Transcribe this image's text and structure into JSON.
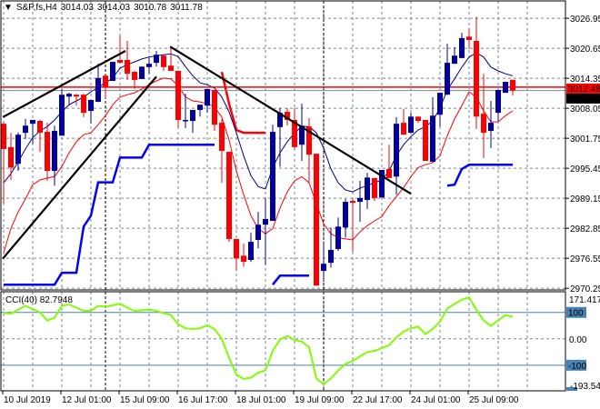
{
  "header": {
    "menu_icon": "triangle-down-icon",
    "symbol": "S&P,fs,H4",
    "open": "3014.03",
    "high": "3014.03",
    "low": "3010.78",
    "close": "3011.78"
  },
  "chart_data": [
    {
      "type": "candlestick",
      "ylim": [
        2969.9,
        3030.6
      ],
      "grid": true,
      "price_ticks": [
        "3026.95",
        "3020.65",
        "3014.35",
        "3008.05",
        "3001.75",
        "2995.45",
        "2989.15",
        "2982.85",
        "2976.55",
        "2970.25"
      ],
      "x_tick_labels": [
        {
          "bar": 0,
          "label": "10 Jul 2019"
        },
        {
          "bar": 8,
          "label": "12 Jul 01:00"
        },
        {
          "bar": 16,
          "label": "15 Jul 09:00"
        },
        {
          "bar": 24,
          "label": "16 Jul 17:00"
        },
        {
          "bar": 32,
          "label": "18 Jul 01:00"
        },
        {
          "bar": 40,
          "label": "19 Jul 09:00"
        },
        {
          "bar": 48,
          "label": "22 Jul 17:00"
        },
        {
          "bar": 56,
          "label": "24 Jul 01:00"
        },
        {
          "bar": 64,
          "label": "25 Jul 09:00"
        }
      ],
      "period_separators_bars": [
        14,
        44
      ],
      "ohlc": [
        [
          3004.8,
          3005.2,
          2988.0,
          2999.5
        ],
        [
          2999.9,
          3002.9,
          2993.0,
          2995.6
        ],
        [
          2996.4,
          3003.0,
          2994.9,
          3002.5
        ],
        [
          3002.9,
          3005.8,
          3001.6,
          3004.4
        ],
        [
          3004.8,
          3005.6,
          3000.6,
          3005.6
        ],
        [
          3005.4,
          3005.6,
          2998.9,
          3002.9
        ],
        [
          3003.1,
          3005.0,
          2992.8,
          2994.9
        ],
        [
          2994.9,
          3004.4,
          2991.8,
          3003.3
        ],
        [
          3002.3,
          3012.1,
          3002.3,
          3010.9
        ],
        [
          3010.5,
          3011.3,
          3008.6,
          3011.1
        ],
        [
          3010.9,
          3011.1,
          3008.6,
          3010.5
        ],
        [
          3010.9,
          3011.1,
          3006.2,
          3007.1
        ],
        [
          3007.5,
          3009.8,
          3004.8,
          3009.8
        ],
        [
          3009.4,
          3017.4,
          3009.4,
          3014.4
        ],
        [
          3014.9,
          3014.9,
          3010.2,
          3012.5
        ],
        [
          3013.8,
          3017.8,
          3013.8,
          3017.8
        ],
        [
          3018.2,
          3023.3,
          3017.6,
          3017.6
        ],
        [
          3018.2,
          3022.2,
          3014.0,
          3015.3
        ],
        [
          3015.7,
          3015.9,
          3012.1,
          3014.0
        ],
        [
          3014.2,
          3016.8,
          3014.2,
          3016.8
        ],
        [
          3016.7,
          3018.6,
          3015.3,
          3017.4
        ],
        [
          3017.6,
          3020.1,
          3016.8,
          3019.3
        ],
        [
          3019.1,
          3019.3,
          3015.9,
          3016.7
        ],
        [
          3017.0,
          3020.9,
          3015.9,
          3015.9
        ],
        [
          3015.9,
          3016.0,
          3003.9,
          3005.6
        ],
        [
          3005.4,
          3011.1,
          3003.9,
          3005.6
        ],
        [
          3005.4,
          3007.7,
          3002.9,
          3007.7
        ],
        [
          3007.7,
          3008.8,
          3006.3,
          3008.8
        ],
        [
          3008.6,
          3012.1,
          3007.1,
          3012.1
        ],
        [
          3011.9,
          3011.9,
          3003.3,
          3004.6
        ],
        [
          3005.0,
          3005.8,
          2992.4,
          2999.1
        ],
        [
          2998.9,
          2998.9,
          2980.0,
          2980.6
        ],
        [
          2980.6,
          2980.6,
          2973.9,
          2976.5
        ],
        [
          2977.1,
          2979.6,
          2974.8,
          2975.8
        ],
        [
          2976.2,
          2981.9,
          2975.8,
          2980.0
        ],
        [
          2980.4,
          2986.3,
          2978.6,
          2983.6
        ],
        [
          2983.6,
          2989.2,
          2975.2,
          2984.8
        ],
        [
          2984.4,
          3004.6,
          2984.4,
          3003.1
        ],
        [
          3004.1,
          3008.1,
          2995.8,
          3007.1
        ],
        [
          3007.3,
          3008.1,
          3004.4,
          3005.6
        ],
        [
          3005.6,
          3008.1,
          2999.5,
          2999.9
        ],
        [
          3000.4,
          3009.0,
          2997.0,
          3004.4
        ],
        [
          3004.2,
          3006.0,
          2992.4,
          2998.3
        ],
        [
          2998.5,
          2998.5,
          2970.8,
          2970.8
        ],
        [
          2973.9,
          2979.8,
          2971.6,
          2975.4
        ],
        [
          2975.6,
          2983.0,
          2974.6,
          2978.3
        ],
        [
          2978.5,
          2985.1,
          2978.1,
          2983.2
        ],
        [
          2983.0,
          2989.0,
          2980.9,
          2988.4
        ],
        [
          2988.6,
          2989.0,
          2977.9,
          2988.2
        ],
        [
          2988.4,
          2992.8,
          2984.2,
          2989.2
        ],
        [
          2988.8,
          2994.5,
          2986.9,
          2993.5
        ],
        [
          2993.4,
          2993.4,
          2988.6,
          2989.2
        ],
        [
          2989.3,
          2995.1,
          2989.3,
          2995.1
        ],
        [
          2995.3,
          3000.4,
          2993.4,
          2993.4
        ],
        [
          2993.7,
          3006.2,
          2989.9,
          3004.8
        ],
        [
          3005.0,
          3007.9,
          3002.5,
          3002.5
        ],
        [
          3002.9,
          3007.1,
          3002.9,
          3006.3
        ],
        [
          3006.3,
          3006.3,
          3005.0,
          3005.4
        ],
        [
          3005.6,
          3005.6,
          2997.0,
          2997.0
        ],
        [
          2996.8,
          3010.4,
          2996.8,
          3006.5
        ],
        [
          3006.7,
          3011.3,
          3004.2,
          3011.3
        ],
        [
          3010.9,
          3021.6,
          3010.9,
          3017.6
        ],
        [
          3017.4,
          3020.9,
          3017.4,
          3019.1
        ],
        [
          3018.6,
          3023.9,
          3018.6,
          3022.8
        ],
        [
          3023.1,
          3024.9,
          3020.5,
          3022.4
        ],
        [
          3022.2,
          3027.2,
          3003.7,
          3006.3
        ],
        [
          3006.9,
          3015.3,
          2997.6,
          3002.9
        ],
        [
          3003.3,
          3009.6,
          2999.7,
          3005.0
        ],
        [
          3007.1,
          3011.9,
          3005.4,
          3011.9
        ],
        [
          3011.3,
          3013.6,
          3011.3,
          3013.6
        ],
        [
          3014.03,
          3014.03,
          3010.78,
          3011.78
        ]
      ],
      "fast_ma": [
        2992.4,
        2994.3,
        2996.8,
        2999.5,
        3001.9,
        3003.3,
        3004.2,
        3005.6,
        3007.3,
        3008.8,
        3009.6,
        3010.4,
        3011.5,
        3012.5,
        3013.4,
        3014.4,
        3016.5,
        3017.2,
        3017.8,
        3018.4,
        3018.8,
        3019.1,
        3019.3,
        3019.5,
        3018.9,
        3016.8,
        3014.9,
        3013.4,
        3013.0,
        3012.3,
        3010.4,
        3007.3,
        3002.9,
        2998.1,
        2993.9,
        2991.6,
        2991.1,
        2995.6,
        2998.7,
        3001.0,
        3002.9,
        3004.2,
        3004.2,
        3002.9,
        2999.7,
        2995.3,
        2992.4,
        2990.9,
        2990.5,
        2991.3,
        2991.8,
        2992.4,
        2993.0,
        2994.9,
        2998.1,
        3000.4,
        3002.1,
        3003.5,
        3004.2,
        3005.4,
        3008.1,
        3011.9,
        3014.2,
        3016.7,
        3018.8,
        3019.7,
        3018.8,
        3016.7,
        3015.9,
        3015.3,
        3014.9
      ],
      "slow_ma": [
        2977.7,
        2982.8,
        2986.3,
        2989.0,
        2992.0,
        2993.0,
        2993.4,
        2993.7,
        2995.8,
        2998.7,
        3001.0,
        3002.5,
        3002.9,
        3004.6,
        3006.5,
        3008.8,
        3010.4,
        3010.9,
        3011.3,
        3012.1,
        3013.0,
        3013.8,
        3014.4,
        3014.2,
        3012.8,
        3010.4,
        3009.6,
        3009.4,
        3009.0,
        3008.3,
        3006.2,
        3001.4,
        2994.9,
        2989.9,
        2985.5,
        2982.8,
        2981.7,
        2982.8,
        2987.1,
        2990.5,
        2992.8,
        2993.7,
        2992.4,
        2988.0,
        2983.8,
        2981.7,
        2980.9,
        2980.6,
        2980.4,
        2982.1,
        2983.4,
        2984.4,
        2985.3,
        2987.6,
        2989.5,
        2991.4,
        2993.7,
        2995.6,
        2996.2,
        2996.6,
        2998.1,
        3002.3,
        3005.8,
        3008.6,
        3011.5,
        3010.4,
        3007.5,
        3005.2,
        3005.2,
        3006.5,
        3007.5
      ],
      "support_step": [
        2971.0,
        2971.0,
        2971.0,
        2971.0,
        2971.0,
        2971.0,
        2971.0,
        2971.0,
        2973.5,
        2973.5,
        2973.5,
        2983.2,
        2985.5,
        2992.5,
        2992.5,
        2992.5,
        2997.7,
        2997.7,
        2997.7,
        2997.7,
        3000.4,
        3000.4,
        3000.4,
        3000.4,
        3000.4,
        3000.4,
        3000.4,
        3000.4,
        3000.4,
        3000.4,
        null,
        null,
        null,
        null,
        null,
        null,
        null,
        2971.0,
        2972.9,
        2972.9,
        2972.9,
        2972.9,
        2972.9,
        null,
        null,
        null,
        null,
        null,
        null,
        null,
        null,
        null,
        null,
        null,
        null,
        null,
        null,
        null,
        null,
        null,
        null,
        2991.8,
        2992.0,
        2995.3,
        2996.2,
        2996.2,
        2996.2,
        2996.2,
        2996.2,
        2996.2,
        2996.2
      ],
      "resistance_step": [
        null,
        null,
        null,
        null,
        null,
        null,
        null,
        null,
        null,
        null,
        null,
        null,
        null,
        null,
        null,
        null,
        null,
        null,
        null,
        null,
        null,
        null,
        null,
        null,
        null,
        null,
        null,
        null,
        null,
        null,
        3015.7,
        3009.0,
        3003.5,
        3002.9,
        3002.9,
        3002.9,
        3002.9,
        null,
        null,
        null,
        null,
        null,
        null,
        null,
        null,
        null,
        null,
        null,
        null,
        null,
        null,
        null,
        null,
        null,
        null,
        null,
        null,
        null,
        null,
        null,
        null,
        null,
        null,
        null,
        null,
        null,
        null,
        null,
        null,
        null,
        null
      ],
      "trendlines": [
        {
          "from": {
            "bar": -0.1,
            "price": 3006.2
          },
          "to": {
            "bar": 16.75,
            "price": 3020.1
          }
        },
        {
          "from": {
            "bar": -0.1,
            "price": 2976.5
          },
          "to": {
            "bar": 21,
            "price": 3014.7
          }
        },
        {
          "from": {
            "bar": 22.9,
            "price": 3021.0
          },
          "to": {
            "bar": 56,
            "price": 2990.1
          }
        }
      ],
      "ask_line": {
        "price": 3012.48,
        "label": "3012.48"
      },
      "bid_line": {
        "price": 3011.78,
        "label": "3011.78"
      }
    },
    {
      "type": "line",
      "title": "CCI(40) 82.7948",
      "ylim": [
        -193.5429,
        171.4179
      ],
      "axis_labels": {
        "max": "171.4179",
        "level_up": "100",
        "zero": "0.00",
        "level_down": "-100",
        "min": "-193.5429"
      },
      "levels": [
        100,
        -100
      ],
      "values": [
        98,
        95,
        110,
        125,
        113,
        100,
        69,
        80,
        125,
        130,
        118,
        106,
        106,
        125,
        121,
        127,
        133,
        118,
        106,
        108,
        110,
        106,
        97,
        90,
        55,
        40,
        37,
        40,
        52,
        36,
        0,
        -72,
        -135,
        -152,
        -147,
        -128,
        -119,
        -45,
        -3,
        11,
        -5,
        -10,
        -32,
        -150,
        -172,
        -150,
        -120,
        -95,
        -84,
        -66,
        -50,
        -46,
        -35,
        -24,
        5,
        28,
        40,
        46,
        18,
        38,
        65,
        115,
        132,
        148,
        157,
        110,
        70,
        49,
        70,
        90,
        82.79
      ]
    }
  ],
  "colors": {
    "bull": "#0000A0",
    "bear": "#FF0000",
    "grid": "#778899",
    "fast_ma": "#000080",
    "slow_ma": "#FF0000",
    "support_step": "#0000FF",
    "resistance_step": "#FF0000",
    "cci": "#7FFF00",
    "cci_levels": "#4682B4",
    "trendline": "#000000",
    "ask_line": "#FF0000",
    "bid_line": "#778899"
  }
}
